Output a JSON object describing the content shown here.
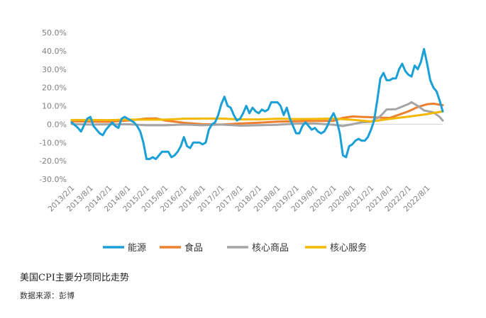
{
  "caption": "美国CPI主要分项同比走势",
  "source": "数据来源：彭博",
  "chart_data": {
    "type": "line",
    "y_ticks": [
      "50.0%",
      "40.0%",
      "30.0%",
      "20.0%",
      "10.0%",
      "0.0%",
      "-10.0%",
      "-20.0%",
      "-30.0%"
    ],
    "ylim": [
      -30,
      50
    ],
    "x_ticks": [
      "2013/2/1",
      "2013/8/1",
      "2014/2/1",
      "2014/8/1",
      "2015/2/1",
      "2015/8/1",
      "2016/2/1",
      "2016/8/1",
      "2017/2/1",
      "2017/8/1",
      "2018/2/1",
      "2018/8/1",
      "2019/2/1",
      "2019/8/1",
      "2020/2/1",
      "2020/8/1",
      "2021/2/1",
      "2021/8/1",
      "2022/2/1",
      "2022/8/1"
    ],
    "x_start": "2013/1",
    "legend_position": "bottom",
    "grid": false,
    "series": [
      {
        "name": "能源",
        "color": "#1a9fd6",
        "points": [
          [
            "2013/1",
            1
          ],
          [
            "2013/3",
            -2
          ],
          [
            "2013/4",
            -4
          ],
          [
            "2013/6",
            3
          ],
          [
            "2013/7",
            4
          ],
          [
            "2013/8",
            -1
          ],
          [
            "2013/9",
            -3
          ],
          [
            "2013/10",
            -5
          ],
          [
            "2013/11",
            -6
          ],
          [
            "2013/12",
            -3
          ],
          [
            "2014/2",
            1
          ],
          [
            "2014/3",
            -1
          ],
          [
            "2014/4",
            -2
          ],
          [
            "2014/5",
            3
          ],
          [
            "2014/6",
            4
          ],
          [
            "2014/7",
            3
          ],
          [
            "2014/8",
            2
          ],
          [
            "2014/9",
            1
          ],
          [
            "2014/10",
            -1
          ],
          [
            "2014/11",
            -4
          ],
          [
            "2014/12",
            -10
          ],
          [
            "2015/1",
            -19
          ],
          [
            "2015/2",
            -19
          ],
          [
            "2015/3",
            -18
          ],
          [
            "2015/4",
            -19
          ],
          [
            "2015/5",
            -17
          ],
          [
            "2015/6",
            -15
          ],
          [
            "2015/7",
            -15
          ],
          [
            "2015/8",
            -15
          ],
          [
            "2015/9",
            -18
          ],
          [
            "2015/10",
            -17
          ],
          [
            "2015/11",
            -15
          ],
          [
            "2015/12",
            -12
          ],
          [
            "2016/1",
            -7
          ],
          [
            "2016/2",
            -12
          ],
          [
            "2016/3",
            -13
          ],
          [
            "2016/4",
            -10
          ],
          [
            "2016/5",
            -10
          ],
          [
            "2016/6",
            -10
          ],
          [
            "2016/7",
            -11
          ],
          [
            "2016/8",
            -10
          ],
          [
            "2016/9",
            -3
          ],
          [
            "2016/10",
            0
          ],
          [
            "2016/11",
            1
          ],
          [
            "2016/12",
            5
          ],
          [
            "2017/1",
            11
          ],
          [
            "2017/2",
            15
          ],
          [
            "2017/3",
            10
          ],
          [
            "2017/4",
            9
          ],
          [
            "2017/5",
            5
          ],
          [
            "2017/6",
            2
          ],
          [
            "2017/7",
            3
          ],
          [
            "2017/8",
            6
          ],
          [
            "2017/9",
            10
          ],
          [
            "2017/10",
            6
          ],
          [
            "2017/11",
            9
          ],
          [
            "2017/12",
            7
          ],
          [
            "2018/1",
            6
          ],
          [
            "2018/2",
            8
          ],
          [
            "2018/3",
            7
          ],
          [
            "2018/4",
            8
          ],
          [
            "2018/5",
            12
          ],
          [
            "2018/6",
            12
          ],
          [
            "2018/7",
            12
          ],
          [
            "2018/8",
            10
          ],
          [
            "2018/9",
            5
          ],
          [
            "2018/10",
            9
          ],
          [
            "2018/11",
            3
          ],
          [
            "2018/12",
            -1
          ],
          [
            "2019/1",
            -5
          ],
          [
            "2019/2",
            -5
          ],
          [
            "2019/3",
            -1
          ],
          [
            "2019/4",
            1
          ],
          [
            "2019/5",
            -1
          ],
          [
            "2019/6",
            -3
          ],
          [
            "2019/7",
            -2
          ],
          [
            "2019/8",
            -4
          ],
          [
            "2019/9",
            -5
          ],
          [
            "2019/10",
            -4
          ],
          [
            "2019/11",
            -1
          ],
          [
            "2019/12",
            3
          ],
          [
            "2020/1",
            6
          ],
          [
            "2020/2",
            2
          ],
          [
            "2020/3",
            -5
          ],
          [
            "2020/4",
            -17
          ],
          [
            "2020/5",
            -18
          ],
          [
            "2020/6",
            -12
          ],
          [
            "2020/7",
            -11
          ],
          [
            "2020/8",
            -9
          ],
          [
            "2020/9",
            -8
          ],
          [
            "2020/10",
            -9
          ],
          [
            "2020/11",
            -9
          ],
          [
            "2020/12",
            -7
          ],
          [
            "2021/1",
            -3
          ],
          [
            "2021/2",
            2
          ],
          [
            "2021/3",
            13
          ],
          [
            "2021/4",
            25
          ],
          [
            "2021/5",
            28
          ],
          [
            "2021/6",
            24
          ],
          [
            "2021/7",
            24
          ],
          [
            "2021/8",
            25
          ],
          [
            "2021/9",
            25
          ],
          [
            "2021/10",
            30
          ],
          [
            "2021/11",
            33
          ],
          [
            "2021/12",
            29
          ],
          [
            "2022/1",
            27
          ],
          [
            "2022/2",
            26
          ],
          [
            "2022/3",
            32
          ],
          [
            "2022/4",
            30
          ],
          [
            "2022/5",
            34
          ],
          [
            "2022/6",
            41
          ],
          [
            "2022/7",
            33
          ],
          [
            "2022/8",
            24
          ],
          [
            "2022/9",
            20
          ],
          [
            "2022/10",
            18
          ],
          [
            "2022/11",
            13
          ],
          [
            "2022/12",
            7
          ]
        ]
      },
      {
        "name": "食品",
        "color": "#ee7f2e",
        "points": [
          [
            "2013/1",
            1.6
          ],
          [
            "2013/7",
            1.4
          ],
          [
            "2014/1",
            1.3
          ],
          [
            "2014/7",
            2.0
          ],
          [
            "2015/1",
            3.1
          ],
          [
            "2015/4",
            3.2
          ],
          [
            "2015/7",
            2.0
          ],
          [
            "2016/1",
            0.8
          ],
          [
            "2016/7",
            0.0
          ],
          [
            "2017/1",
            -0.2
          ],
          [
            "2017/7",
            0.4
          ],
          [
            "2018/1",
            0.8
          ],
          [
            "2018/7",
            1.4
          ],
          [
            "2019/1",
            1.6
          ],
          [
            "2019/7",
            1.8
          ],
          [
            "2020/1",
            1.8
          ],
          [
            "2020/4",
            3.5
          ],
          [
            "2020/7",
            4.2
          ],
          [
            "2021/1",
            3.8
          ],
          [
            "2021/7",
            3.4
          ],
          [
            "2022/1",
            7.0
          ],
          [
            "2022/4",
            9.4
          ],
          [
            "2022/7",
            10.9
          ],
          [
            "2022/9",
            11.2
          ],
          [
            "2022/12",
            10.4
          ]
        ]
      },
      {
        "name": "核心商品",
        "color": "#a5a5a5",
        "points": [
          [
            "2013/1",
            0.1
          ],
          [
            "2013/7",
            -0.2
          ],
          [
            "2014/1",
            -0.1
          ],
          [
            "2014/7",
            0.0
          ],
          [
            "2015/1",
            -0.6
          ],
          [
            "2015/7",
            -0.6
          ],
          [
            "2016/1",
            -0.2
          ],
          [
            "2016/7",
            -0.6
          ],
          [
            "2017/1",
            -0.2
          ],
          [
            "2017/7",
            -0.8
          ],
          [
            "2018/1",
            -0.6
          ],
          [
            "2018/7",
            -0.3
          ],
          [
            "2019/1",
            0.3
          ],
          [
            "2019/7",
            0.4
          ],
          [
            "2020/1",
            -0.3
          ],
          [
            "2020/4",
            -1.0
          ],
          [
            "2020/7",
            0.0
          ],
          [
            "2020/10",
            1.0
          ],
          [
            "2021/1",
            1.3
          ],
          [
            "2021/4",
            4.4
          ],
          [
            "2021/6",
            8.0
          ],
          [
            "2021/9",
            8.2
          ],
          [
            "2022/1",
            11.0
          ],
          [
            "2022/2",
            12.0
          ],
          [
            "2022/4",
            10.0
          ],
          [
            "2022/6",
            7.5
          ],
          [
            "2022/9",
            6.5
          ],
          [
            "2022/11",
            4.0
          ],
          [
            "2022/12",
            2.0
          ]
        ]
      },
      {
        "name": "核心服务",
        "color": "#f5b800",
        "points": [
          [
            "2013/1",
            2.3
          ],
          [
            "2013/7",
            2.3
          ],
          [
            "2014/1",
            2.2
          ],
          [
            "2014/7",
            2.5
          ],
          [
            "2015/1",
            2.5
          ],
          [
            "2015/7",
            2.5
          ],
          [
            "2016/1",
            3.0
          ],
          [
            "2016/7",
            3.1
          ],
          [
            "2017/1",
            3.1
          ],
          [
            "2017/7",
            2.6
          ],
          [
            "2018/1",
            2.6
          ],
          [
            "2018/7",
            3.0
          ],
          [
            "2019/1",
            2.8
          ],
          [
            "2019/7",
            2.9
          ],
          [
            "2020/1",
            3.1
          ],
          [
            "2020/7",
            2.4
          ],
          [
            "2021/1",
            1.5
          ],
          [
            "2021/7",
            2.9
          ],
          [
            "2022/1",
            4.1
          ],
          [
            "2022/7",
            5.5
          ],
          [
            "2022/12",
            7.0
          ]
        ]
      }
    ]
  }
}
